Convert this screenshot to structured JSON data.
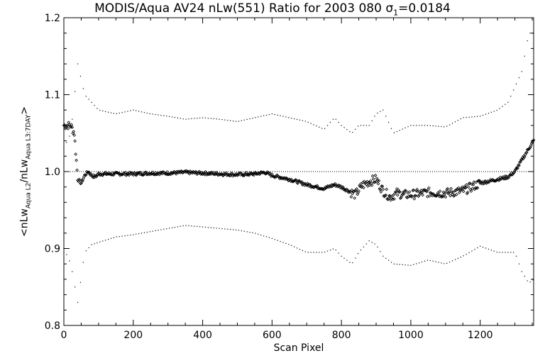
{
  "chart_data": {
    "type": "scatter",
    "title": {
      "main": "MODIS/Aqua AV24 nLw(551) Ratio for 2003 080",
      "sigma_symbol": "σ",
      "sigma_sub": "1",
      "sigma_value": "=0.0184"
    },
    "xlabel": "Scan Pixel",
    "ylabel": {
      "prefix": "<nLw",
      "sub1": "Aqua L2",
      "mid": "/nLw",
      "sub2": "Aqua L3:7DAY",
      "suffix": ">"
    },
    "xlim": [
      0,
      1354
    ],
    "ylim": [
      0.8,
      1.2
    ],
    "x_ticks": [
      "0",
      "200",
      "400",
      "600",
      "800",
      "1000",
      "1200"
    ],
    "y_ticks": [
      "0.8",
      "0.9",
      "1.0",
      "1.1",
      "1.2"
    ],
    "reference_line": 1.0,
    "mean_ratio": {
      "x": [
        0,
        10,
        20,
        30,
        40,
        50,
        60,
        70,
        80,
        90,
        100,
        150,
        200,
        250,
        300,
        350,
        400,
        450,
        500,
        550,
        580,
        600,
        650,
        700,
        750,
        780,
        800,
        820,
        840,
        860,
        880,
        900,
        920,
        940,
        960,
        980,
        1000,
        1050,
        1100,
        1150,
        1200,
        1250,
        1280,
        1300,
        1320,
        1340,
        1354
      ],
      "y": [
        1.06,
        1.06,
        1.06,
        1.05,
        0.99,
        0.985,
        0.995,
        1.0,
        0.995,
        0.993,
        0.997,
        0.997,
        0.997,
        0.998,
        0.998,
        0.999,
        0.998,
        0.997,
        0.996,
        0.997,
        0.999,
        0.995,
        0.99,
        0.983,
        0.978,
        0.983,
        0.98,
        0.975,
        0.97,
        0.982,
        0.987,
        0.99,
        0.975,
        0.967,
        0.972,
        0.97,
        0.97,
        0.973,
        0.972,
        0.975,
        0.985,
        0.99,
        0.993,
        1.0,
        1.015,
        1.03,
        1.04
      ]
    },
    "upper_bound": {
      "x": [
        0,
        20,
        40,
        60,
        80,
        100,
        150,
        200,
        250,
        300,
        350,
        400,
        450,
        500,
        550,
        600,
        650,
        700,
        750,
        780,
        800,
        830,
        850,
        880,
        900,
        920,
        950,
        1000,
        1050,
        1100,
        1150,
        1200,
        1250,
        1280,
        1300,
        1320,
        1340,
        1354
      ],
      "y": [
        1.03,
        1.05,
        1.14,
        1.1,
        1.09,
        1.08,
        1.075,
        1.08,
        1.075,
        1.072,
        1.068,
        1.07,
        1.068,
        1.065,
        1.07,
        1.075,
        1.07,
        1.065,
        1.055,
        1.07,
        1.06,
        1.05,
        1.06,
        1.06,
        1.075,
        1.08,
        1.05,
        1.06,
        1.06,
        1.058,
        1.07,
        1.072,
        1.08,
        1.09,
        1.11,
        1.13,
        1.18,
        1.18
      ]
    },
    "lower_bound": {
      "x": [
        0,
        20,
        40,
        60,
        80,
        100,
        150,
        200,
        250,
        300,
        350,
        400,
        450,
        500,
        550,
        600,
        650,
        700,
        750,
        780,
        800,
        830,
        850,
        880,
        900,
        920,
        950,
        1000,
        1050,
        1100,
        1150,
        1200,
        1250,
        1280,
        1300,
        1320,
        1340,
        1354
      ],
      "y": [
        0.9,
        0.88,
        0.83,
        0.895,
        0.905,
        0.908,
        0.915,
        0.918,
        0.922,
        0.926,
        0.93,
        0.928,
        0.926,
        0.924,
        0.92,
        0.913,
        0.905,
        0.895,
        0.895,
        0.9,
        0.89,
        0.88,
        0.895,
        0.91,
        0.905,
        0.89,
        0.88,
        0.878,
        0.885,
        0.88,
        0.89,
        0.903,
        0.895,
        0.895,
        0.895,
        0.87,
        0.855,
        0.86
      ]
    }
  }
}
